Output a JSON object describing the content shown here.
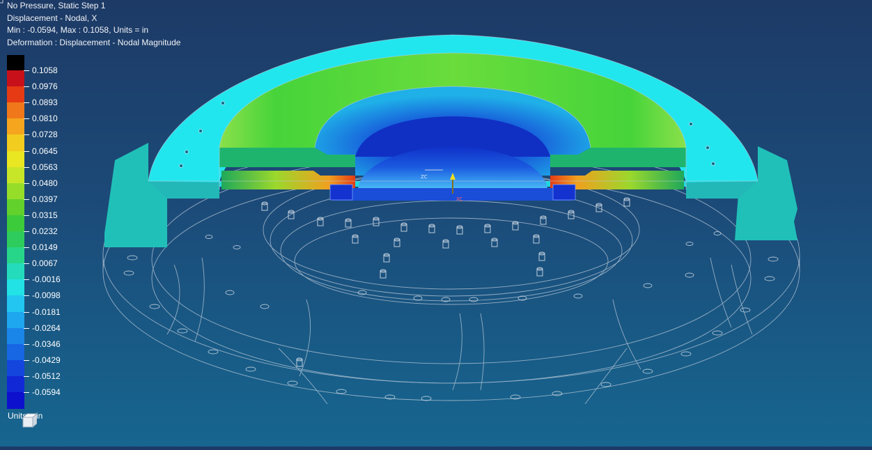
{
  "header": {
    "line1": "No Pressure, Static Step 1",
    "line2": "Displacement - Nodal, X",
    "line3": "Min : -0.0594, Max : 0.1058, Units = in",
    "line4": "Deformation : Displacement - Nodal Magnitude"
  },
  "legend": {
    "overflow_color": "#000000",
    "bands": [
      {
        "label": "0.1058",
        "color": "#c8101a"
      },
      {
        "label": "0.0976",
        "color": "#e63a14"
      },
      {
        "label": "0.0893",
        "color": "#f0781a"
      },
      {
        "label": "0.0810",
        "color": "#f5a51e"
      },
      {
        "label": "0.0728",
        "color": "#f2cc1e"
      },
      {
        "label": "0.0645",
        "color": "#e9e622"
      },
      {
        "label": "0.0563",
        "color": "#c7e628"
      },
      {
        "label": "0.0480",
        "color": "#96dd2a"
      },
      {
        "label": "0.0397",
        "color": "#62d12c"
      },
      {
        "label": "0.0315",
        "color": "#3ccb3a"
      },
      {
        "label": "0.0232",
        "color": "#2ecc5c"
      },
      {
        "label": "0.0149",
        "color": "#28d68a"
      },
      {
        "label": "0.0067",
        "color": "#24dcbc"
      },
      {
        "label": "-0.0016",
        "color": "#22e2e6"
      },
      {
        "label": "-0.0098",
        "color": "#22c6f0"
      },
      {
        "label": "-0.0181",
        "color": "#1ea6ee"
      },
      {
        "label": "-0.0264",
        "color": "#1a86ea"
      },
      {
        "label": "-0.0346",
        "color": "#1766e4"
      },
      {
        "label": "-0.0429",
        "color": "#1446de"
      },
      {
        "label": "-0.0512",
        "color": "#1128d6"
      },
      {
        "label": "-0.0594",
        "color": "#0d10cc"
      }
    ]
  },
  "units_label": "Units = in",
  "axes": {
    "z": "ZC",
    "x": "XC"
  }
}
